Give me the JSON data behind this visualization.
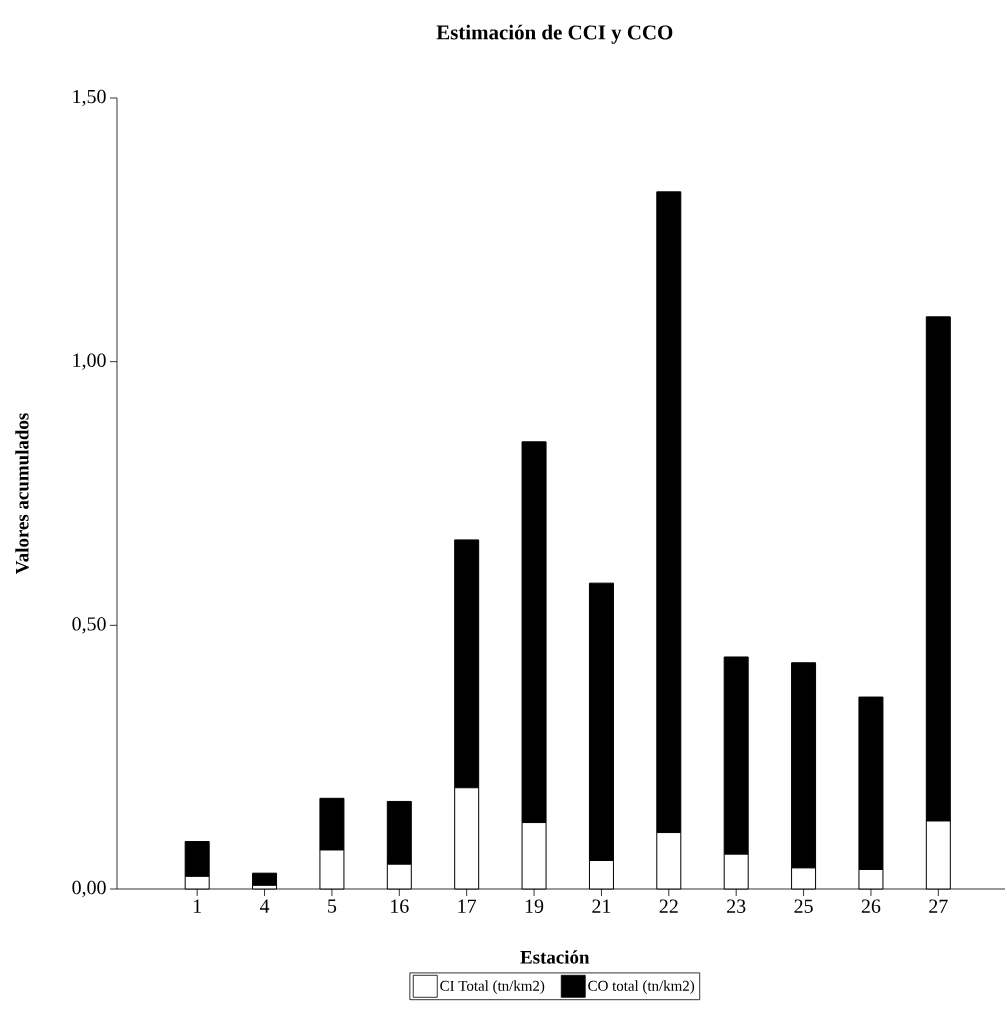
{
  "chart_data": {
    "type": "bar",
    "title": "Estimación de CCI y CCO",
    "xlabel": "Estación",
    "ylabel": "Valores acumulados",
    "categories": [
      "1",
      "4",
      "5",
      "16",
      "17",
      "19",
      "21",
      "22",
      "23",
      "25",
      "26",
      "27"
    ],
    "series": [
      {
        "name": "CI Total (tn/km2)",
        "color": "#ffffff",
        "values": [
          0.024,
          0.007,
          0.074,
          0.047,
          0.192,
          0.126,
          0.054,
          0.107,
          0.066,
          0.04,
          0.037,
          0.129
        ]
      },
      {
        "name": "CO total (tn/km2)",
        "color": "#000000",
        "values": [
          0.066,
          0.023,
          0.098,
          0.119,
          0.47,
          0.722,
          0.526,
          1.215,
          0.374,
          0.389,
          0.327,
          0.956
        ]
      }
    ],
    "stacked": true,
    "ylim": [
      0,
      1.5
    ],
    "yticks": [
      {
        "value": 0,
        "label": "0,00"
      },
      {
        "value": 0.5,
        "label": "0,50"
      },
      {
        "value": 1.0,
        "label": "1,00"
      },
      {
        "value": 1.5,
        "label": "1,50"
      }
    ],
    "legend": "bottom"
  }
}
